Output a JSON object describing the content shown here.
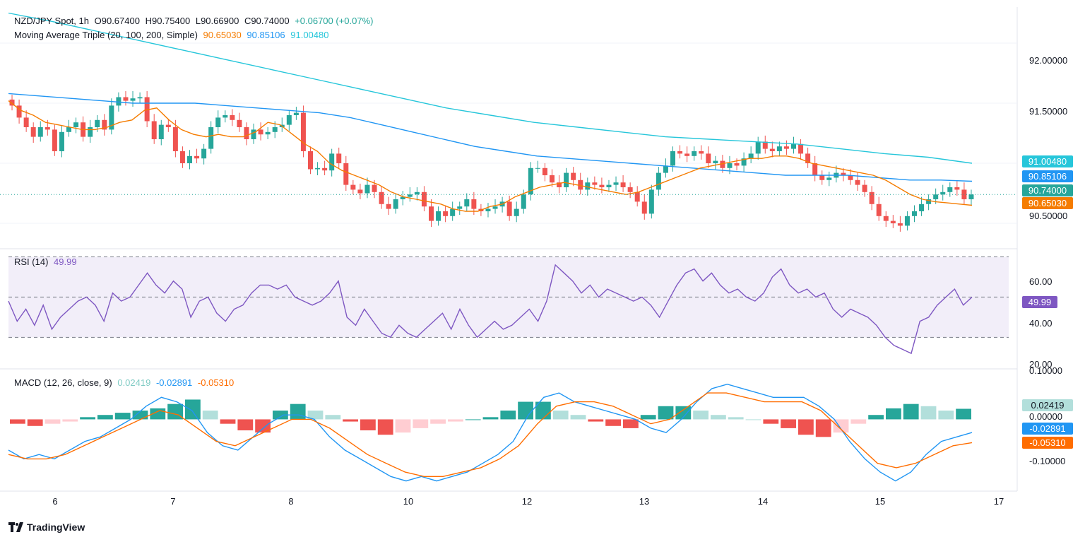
{
  "header": {
    "symbol": "NZD/JPY Spot, 1h",
    "open_label": "O",
    "open": "90.67400",
    "high_label": "H",
    "high": "90.75400",
    "low_label": "L",
    "low": "90.66900",
    "close_label": "C",
    "close": "90.74000",
    "change": "+0.06700 (+0.07%)"
  },
  "ma_legend": {
    "title": "Moving Average Triple (20, 100, 200, Simple)",
    "ma20": "90.65030",
    "ma100": "90.85106",
    "ma200": "91.00480"
  },
  "rsi_legend": {
    "title": "RSI (14)",
    "value": "49.99"
  },
  "macd_legend": {
    "title": "MACD (12, 26, close, 9)",
    "hist": "0.02419",
    "macd": "-0.02891",
    "signal": "-0.05310"
  },
  "price_labels": {
    "ma200": "91.00480",
    "ma100": "90.85106",
    "close": "90.74000",
    "ma20": "90.65030"
  },
  "rsi_label": "49.99",
  "macd_labels": {
    "hist": "0.02419",
    "macd": "-0.02891",
    "signal": "-0.05310"
  },
  "price_axis_ticks": [
    "92.00000",
    "91.50000",
    "90.50000"
  ],
  "rsi_axis_ticks": [
    "60.00",
    "40.00",
    "20.00"
  ],
  "macd_axis_ticks": [
    "0.10000",
    "0.00000",
    "-0.10000"
  ],
  "x_ticks": [
    "6",
    "7",
    "8",
    "10",
    "12",
    "13",
    "14",
    "15",
    "17"
  ],
  "logo": "TradingView",
  "colors": {
    "up": "#26a69a",
    "down": "#ef5350",
    "ma20": "#f57c00",
    "ma100": "#2196f3",
    "ma200": "#26c6da",
    "rsi": "#7e57c2",
    "macd": "#2196f3",
    "signal": "#ff6d00"
  },
  "chart_data": [
    {
      "type": "candlestick",
      "title": "NZD/JPY Spot, 1h",
      "ylim": [
        90.3,
        92.3
      ],
      "x": [
        "6",
        "7",
        "8",
        "10",
        "12",
        "13",
        "14",
        "15",
        "17"
      ],
      "close_series": [
        91.48,
        91.38,
        91.3,
        91.22,
        91.3,
        91.28,
        91.1,
        91.26,
        91.3,
        91.34,
        91.22,
        91.3,
        91.36,
        91.28,
        91.48,
        91.55,
        91.52,
        91.54,
        91.55,
        91.35,
        91.2,
        91.32,
        91.3,
        91.1,
        91.0,
        91.06,
        91.04,
        91.12,
        91.3,
        91.38,
        91.4,
        91.36,
        91.3,
        91.2,
        91.28,
        91.24,
        91.26,
        91.3,
        91.32,
        91.4,
        91.42,
        91.1,
        90.95,
        90.96,
        90.94,
        91.08,
        91.0,
        90.82,
        90.78,
        90.75,
        90.82,
        90.76,
        90.66,
        90.62,
        90.7,
        90.72,
        90.74,
        90.76,
        90.64,
        90.52,
        90.6,
        90.56,
        90.62,
        90.64,
        90.7,
        90.62,
        90.6,
        90.62,
        90.64,
        90.68,
        90.56,
        90.62,
        90.74,
        90.96,
        90.96,
        90.9,
        90.84,
        90.8,
        90.92,
        90.86,
        90.78,
        90.84,
        90.82,
        90.8,
        90.82,
        90.84,
        90.8,
        90.76,
        90.68,
        90.58,
        90.78,
        90.92,
        90.98,
        91.1,
        91.08,
        91.06,
        91.1,
        91.08,
        91.0,
        91.02,
        90.96,
        91.0,
        90.98,
        91.04,
        91.08,
        91.18,
        91.12,
        91.1,
        91.14,
        91.12,
        91.16,
        91.08,
        91.0,
        90.9,
        90.86,
        90.88,
        90.92,
        90.9,
        90.86,
        90.82,
        90.76,
        90.66,
        90.56,
        90.52,
        90.5,
        90.48,
        90.56,
        90.6,
        90.66,
        90.7,
        90.74,
        90.76,
        90.8,
        90.78,
        90.7,
        90.74
      ],
      "ma20": [
        91.52,
        91.44,
        91.4,
        91.34,
        91.32,
        91.3,
        91.28,
        91.28,
        91.3,
        91.34,
        91.36,
        91.44,
        91.46,
        91.36,
        91.28,
        91.24,
        91.22,
        91.24,
        91.22,
        91.22,
        91.26,
        91.34,
        91.32,
        91.24,
        91.16,
        91.1,
        91.0,
        90.94,
        90.9,
        90.86,
        90.82,
        90.76,
        90.72,
        90.7,
        90.68,
        90.66,
        90.62,
        90.6,
        90.6,
        90.64,
        90.66,
        90.72,
        90.76,
        90.8,
        90.82,
        90.84,
        90.82,
        90.8,
        90.78,
        90.76,
        90.74,
        90.76,
        90.8,
        90.84,
        90.88,
        90.92,
        90.96,
        90.98,
        91.0,
        91.02,
        91.04,
        91.04,
        91.06,
        91.06,
        91.04,
        91.0,
        90.98,
        90.96,
        90.94,
        90.92,
        90.9,
        90.86,
        90.8,
        90.74,
        90.7,
        90.68,
        90.67,
        90.66,
        90.65
      ],
      "ma100": [
        91.58,
        91.56,
        91.54,
        91.52,
        91.5,
        91.5,
        91.5,
        91.48,
        91.46,
        91.44,
        91.42,
        91.38,
        91.32,
        91.26,
        91.2,
        91.14,
        91.1,
        91.06,
        91.04,
        91.02,
        91.0,
        90.98,
        90.96,
        90.94,
        90.92,
        90.9,
        90.9,
        90.9,
        90.88,
        90.86,
        90.86,
        90.85
      ],
      "ma200": [
        92.25,
        92.18,
        92.1,
        92.02,
        91.94,
        91.86,
        91.78,
        91.7,
        91.62,
        91.54,
        91.46,
        91.4,
        91.34,
        91.3,
        91.26,
        91.22,
        91.2,
        91.18,
        91.16,
        91.12,
        91.08,
        91.05,
        91.0
      ]
    },
    {
      "type": "line",
      "title": "RSI (14)",
      "ylim": [
        15,
        73
      ],
      "values": [
        48,
        38,
        44,
        36,
        46,
        34,
        40,
        44,
        48,
        50,
        46,
        38,
        52,
        48,
        50,
        56,
        62,
        56,
        52,
        58,
        54,
        40,
        48,
        50,
        42,
        38,
        44,
        46,
        52,
        56,
        56,
        54,
        56,
        50,
        48,
        46,
        48,
        52,
        58,
        40,
        36,
        44,
        38,
        32,
        30,
        36,
        32,
        30,
        34,
        38,
        42,
        34,
        44,
        36,
        30,
        34,
        38,
        34,
        36,
        40,
        44,
        38,
        48,
        66,
        62,
        58,
        52,
        56,
        50,
        54,
        52,
        50,
        48,
        50,
        46,
        40,
        48,
        56,
        62,
        64,
        58,
        62,
        56,
        52,
        54,
        50,
        48,
        52,
        60,
        64,
        56,
        52,
        54,
        50,
        52,
        44,
        40,
        44,
        42,
        40,
        36,
        30,
        26,
        24,
        22,
        38,
        40,
        46,
        50,
        54,
        46,
        49.99
      ],
      "guides": [
        70,
        50,
        30
      ]
    },
    {
      "type": "line+bar",
      "title": "MACD (12, 26, close, 9)",
      "ylim": [
        -0.16,
        0.11
      ],
      "macd": [
        -0.07,
        -0.09,
        -0.08,
        -0.09,
        -0.07,
        -0.05,
        -0.04,
        -0.02,
        0.0,
        0.03,
        0.05,
        0.04,
        0.02,
        -0.03,
        -0.06,
        -0.07,
        -0.04,
        -0.01,
        0.01,
        0.01,
        0.0,
        -0.04,
        -0.07,
        -0.09,
        -0.11,
        -0.13,
        -0.14,
        -0.13,
        -0.14,
        -0.13,
        -0.12,
        -0.1,
        -0.08,
        -0.05,
        0.01,
        0.05,
        0.06,
        0.04,
        0.03,
        0.02,
        0.01,
        0.0,
        -0.02,
        -0.03,
        0.0,
        0.04,
        0.07,
        0.08,
        0.07,
        0.06,
        0.05,
        0.05,
        0.05,
        0.03,
        0.0,
        -0.05,
        -0.09,
        -0.12,
        -0.14,
        -0.12,
        -0.08,
        -0.05,
        -0.04,
        -0.03
      ],
      "signal": [
        -0.08,
        -0.09,
        -0.09,
        -0.08,
        -0.06,
        -0.04,
        -0.02,
        0.0,
        0.02,
        0.01,
        -0.02,
        -0.05,
        -0.06,
        -0.04,
        -0.02,
        0.0,
        0.0,
        -0.02,
        -0.05,
        -0.08,
        -0.1,
        -0.12,
        -0.13,
        -0.13,
        -0.12,
        -0.11,
        -0.09,
        -0.06,
        -0.01,
        0.03,
        0.04,
        0.04,
        0.03,
        0.01,
        -0.01,
        0.0,
        0.03,
        0.06,
        0.06,
        0.05,
        0.04,
        0.04,
        0.04,
        0.02,
        -0.02,
        -0.06,
        -0.1,
        -0.11,
        -0.1,
        -0.08,
        -0.06,
        -0.053
      ],
      "histogram": [
        -0.01,
        -0.015,
        -0.01,
        -0.005,
        0.005,
        0.01,
        0.015,
        0.02,
        0.025,
        0.035,
        0.045,
        0.02,
        -0.01,
        -0.025,
        -0.03,
        0.02,
        0.035,
        0.02,
        0.01,
        -0.005,
        -0.025,
        -0.035,
        -0.03,
        -0.02,
        -0.01,
        -0.005,
        0.0,
        0.005,
        0.02,
        0.04,
        0.04,
        0.02,
        0.01,
        -0.005,
        -0.015,
        -0.02,
        0.01,
        0.03,
        0.03,
        0.02,
        0.01,
        0.005,
        0.0,
        -0.01,
        -0.02,
        -0.035,
        -0.04,
        -0.03,
        -0.01,
        0.01,
        0.025,
        0.035,
        0.03,
        0.02,
        0.024
      ]
    }
  ]
}
